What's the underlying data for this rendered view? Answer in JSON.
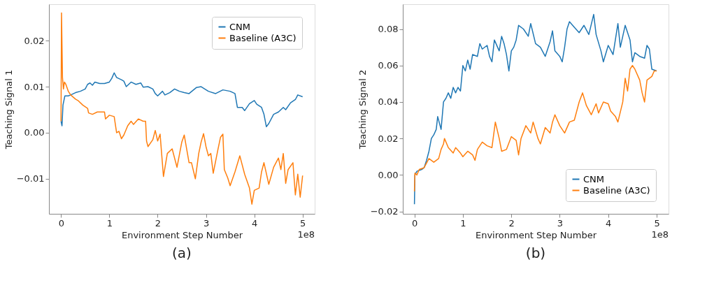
{
  "chart_data": [
    {
      "type": "line",
      "title": "(a)",
      "xlabel": "Environment Step Number",
      "ylabel": "Teaching Signal 1",
      "annotations": [
        "1e8"
      ],
      "xlim": [
        -0.25,
        5.25
      ],
      "xticks": [
        0,
        1,
        2,
        3,
        4,
        5
      ],
      "ylim": [
        -0.0176,
        0.0279
      ],
      "yticks": [
        -0.01,
        {
          "value": 0,
          "label": "0.00"
        },
        0.01,
        0.02
      ],
      "grid": false,
      "legend": "top right",
      "line_style": "solid",
      "marker": "none",
      "series": [
        {
          "name": "CNM",
          "color": "#1f77b4",
          "x": [
            0.0,
            0.02,
            0.04,
            0.08,
            0.15,
            0.2,
            0.3,
            0.4,
            0.5,
            0.55,
            0.6,
            0.65,
            0.7,
            0.8,
            0.9,
            1.0,
            1.05,
            1.1,
            1.15,
            1.25,
            1.3,
            1.35,
            1.45,
            1.55,
            1.65,
            1.7,
            1.8,
            1.9,
            1.95,
            2.0,
            2.1,
            2.15,
            2.25,
            2.35,
            2.45,
            2.55,
            2.65,
            2.8,
            2.9,
            3.05,
            3.2,
            3.35,
            3.5,
            3.6,
            3.65,
            3.75,
            3.8,
            3.9,
            4.0,
            4.05,
            4.15,
            4.2,
            4.25,
            4.3,
            4.4,
            4.5,
            4.6,
            4.65,
            4.75,
            4.85,
            4.9,
            5.0
          ],
          "values": [
            0.0025,
            0.0015,
            0.006,
            0.008,
            0.008,
            0.0082,
            0.0087,
            0.009,
            0.0095,
            0.0105,
            0.0108,
            0.0103,
            0.011,
            0.0107,
            0.0107,
            0.011,
            0.0118,
            0.013,
            0.012,
            0.0115,
            0.0112,
            0.01,
            0.011,
            0.0105,
            0.0108,
            0.0099,
            0.01,
            0.0095,
            0.0085,
            0.008,
            0.009,
            0.0082,
            0.0087,
            0.0095,
            0.009,
            0.0087,
            0.0085,
            0.0098,
            0.01,
            0.009,
            0.0085,
            0.0093,
            0.009,
            0.0085,
            0.0055,
            0.0055,
            0.0048,
            0.0063,
            0.007,
            0.0062,
            0.0055,
            0.004,
            0.0013,
            0.002,
            0.004,
            0.0045,
            0.0055,
            0.005,
            0.0065,
            0.0072,
            0.0082,
            0.0078
          ]
        },
        {
          "name": "Baseline (A3C)",
          "color": "#ff7f0e",
          "x": [
            0.0,
            0.01,
            0.03,
            0.05,
            0.07,
            0.1,
            0.15,
            0.2,
            0.3,
            0.35,
            0.45,
            0.55,
            0.57,
            0.65,
            0.75,
            0.9,
            0.92,
            1.0,
            1.1,
            1.15,
            1.2,
            1.25,
            1.3,
            1.38,
            1.45,
            1.5,
            1.6,
            1.7,
            1.75,
            1.77,
            1.8,
            1.9,
            1.95,
            2.0,
            2.05,
            2.12,
            2.2,
            2.3,
            2.4,
            2.5,
            2.55,
            2.6,
            2.65,
            2.7,
            2.78,
            2.85,
            2.9,
            2.95,
            3.0,
            3.05,
            3.1,
            3.15,
            3.25,
            3.3,
            3.35,
            3.38,
            3.45,
            3.5,
            3.6,
            3.7,
            3.8,
            3.9,
            3.95,
            4.0,
            4.1,
            4.15,
            4.2,
            4.3,
            4.4,
            4.5,
            4.55,
            4.6,
            4.65,
            4.7,
            4.8,
            4.85,
            4.9,
            4.95,
            5.0
          ],
          "values": [
            0.0025,
            0.026,
            0.012,
            0.0095,
            0.011,
            0.0105,
            0.009,
            0.0082,
            0.0073,
            0.007,
            0.006,
            0.0053,
            0.0043,
            0.004,
            0.0045,
            0.0045,
            0.003,
            0.0038,
            0.0035,
            0.0,
            0.0003,
            -0.0013,
            -0.0005,
            0.0015,
            0.0025,
            0.0018,
            0.003,
            0.0025,
            0.0025,
            -0.0018,
            -0.003,
            -0.0015,
            0.0005,
            -0.0018,
            -0.0003,
            -0.0095,
            -0.0045,
            -0.0035,
            -0.0075,
            -0.002,
            -0.0005,
            -0.0035,
            -0.0065,
            -0.0065,
            -0.01,
            -0.0045,
            -0.002,
            -0.0002,
            -0.003,
            -0.005,
            -0.0045,
            -0.0088,
            -0.0035,
            -0.001,
            -0.0003,
            -0.008,
            -0.0098,
            -0.0115,
            -0.0085,
            -0.005,
            -0.009,
            -0.012,
            -0.0155,
            -0.0125,
            -0.012,
            -0.0085,
            -0.0065,
            -0.0112,
            -0.0075,
            -0.0055,
            -0.008,
            -0.0045,
            -0.011,
            -0.008,
            -0.0065,
            -0.0135,
            -0.009,
            -0.014,
            -0.0093
          ]
        }
      ]
    },
    {
      "type": "line",
      "title": "(b)",
      "xlabel": "Environment Step Number",
      "ylabel": "Teaching Signal 2",
      "annotations": [
        "1e8"
      ],
      "xlim": [
        -0.24,
        5.245
      ],
      "xticks": [
        0,
        1,
        2,
        3,
        4,
        5
      ],
      "ylim": [
        -0.0213,
        0.0936
      ],
      "yticks": [
        -0.02,
        {
          "value": 0,
          "label": "0.00"
        },
        0.02,
        0.04,
        0.06,
        0.08
      ],
      "grid": false,
      "legend": "bottom right",
      "line_style": "solid",
      "marker": "none",
      "series": [
        {
          "name": "CNM",
          "color": "#1f77b4",
          "x": [
            0.0,
            0.01,
            0.05,
            0.15,
            0.2,
            0.25,
            0.3,
            0.35,
            0.4,
            0.45,
            0.48,
            0.55,
            0.6,
            0.65,
            0.7,
            0.75,
            0.8,
            0.85,
            0.9,
            0.95,
            1.0,
            1.05,
            1.1,
            1.15,
            1.2,
            1.3,
            1.35,
            1.4,
            1.5,
            1.55,
            1.6,
            1.65,
            1.75,
            1.8,
            1.85,
            1.9,
            1.95,
            2.0,
            2.05,
            2.1,
            2.15,
            2.25,
            2.35,
            2.4,
            2.5,
            2.6,
            2.7,
            2.8,
            2.85,
            2.9,
            3.0,
            3.05,
            3.1,
            3.15,
            3.2,
            3.3,
            3.4,
            3.5,
            3.6,
            3.7,
            3.75,
            3.85,
            3.9,
            4.0,
            4.1,
            4.2,
            4.25,
            4.35,
            4.45,
            4.5,
            4.55,
            4.65,
            4.75,
            4.8,
            4.85,
            4.9,
            5.0
          ],
          "values": [
            -0.016,
            0.0,
            0.002,
            0.003,
            0.004,
            0.008,
            0.013,
            0.02,
            0.022,
            0.025,
            0.032,
            0.025,
            0.04,
            0.042,
            0.045,
            0.042,
            0.048,
            0.045,
            0.048,
            0.046,
            0.06,
            0.057,
            0.063,
            0.058,
            0.066,
            0.065,
            0.072,
            0.069,
            0.071,
            0.065,
            0.062,
            0.074,
            0.068,
            0.076,
            0.072,
            0.066,
            0.057,
            0.068,
            0.07,
            0.074,
            0.082,
            0.08,
            0.076,
            0.083,
            0.072,
            0.07,
            0.065,
            0.073,
            0.079,
            0.068,
            0.065,
            0.062,
            0.07,
            0.08,
            0.084,
            0.081,
            0.078,
            0.082,
            0.077,
            0.088,
            0.077,
            0.068,
            0.062,
            0.071,
            0.066,
            0.083,
            0.07,
            0.082,
            0.074,
            0.062,
            0.067,
            0.065,
            0.064,
            0.071,
            0.069,
            0.058,
            0.057
          ]
        },
        {
          "name": "Baseline (A3C)",
          "color": "#ff7f0e",
          "x": [
            0.0,
            0.01,
            0.05,
            0.1,
            0.2,
            0.3,
            0.4,
            0.5,
            0.55,
            0.6,
            0.62,
            0.7,
            0.8,
            0.85,
            0.95,
            1.0,
            1.1,
            1.2,
            1.25,
            1.3,
            1.4,
            1.5,
            1.6,
            1.65,
            1.67,
            1.75,
            1.8,
            1.9,
            2.0,
            2.1,
            2.15,
            2.2,
            2.3,
            2.4,
            2.45,
            2.55,
            2.6,
            2.7,
            2.8,
            2.85,
            2.9,
            3.0,
            3.1,
            3.2,
            3.3,
            3.4,
            3.47,
            3.55,
            3.65,
            3.75,
            3.8,
            3.9,
            4.0,
            4.05,
            4.15,
            4.2,
            4.3,
            4.35,
            4.4,
            4.45,
            4.5,
            4.55,
            4.65,
            4.7,
            4.75,
            4.8,
            4.9,
            4.95,
            5.0
          ],
          "values": [
            -0.009,
            0.001,
            0.0,
            0.003,
            0.004,
            0.009,
            0.007,
            0.009,
            0.014,
            0.017,
            0.02,
            0.015,
            0.012,
            0.015,
            0.012,
            0.01,
            0.013,
            0.011,
            0.008,
            0.014,
            0.018,
            0.016,
            0.015,
            0.025,
            0.029,
            0.02,
            0.013,
            0.014,
            0.021,
            0.019,
            0.011,
            0.02,
            0.027,
            0.023,
            0.029,
            0.02,
            0.017,
            0.026,
            0.023,
            0.029,
            0.033,
            0.027,
            0.023,
            0.029,
            0.03,
            0.04,
            0.045,
            0.038,
            0.033,
            0.039,
            0.034,
            0.04,
            0.039,
            0.035,
            0.032,
            0.029,
            0.04,
            0.053,
            0.046,
            0.058,
            0.06,
            0.058,
            0.052,
            0.045,
            0.04,
            0.052,
            0.054,
            0.057,
            0.057
          ]
        }
      ]
    }
  ]
}
